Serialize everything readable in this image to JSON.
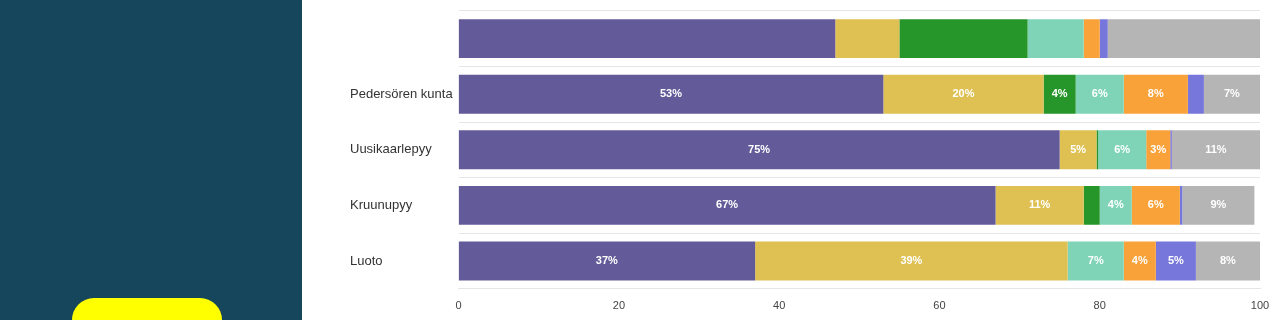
{
  "chart_data": {
    "type": "bar",
    "orientation": "horizontal",
    "stacked": true,
    "categories": [
      null,
      "Pedersören kunta",
      "Uusikaarlepyy",
      "Kruunupyy",
      "Luoto"
    ],
    "series": [
      {
        "color": "#635a9a",
        "values": [
          47,
          53,
          75,
          67,
          37
        ],
        "value_labels": [
          null,
          "53%",
          "75%",
          "67%",
          "37%"
        ]
      },
      {
        "color": "#dfc153",
        "values": [
          8,
          20,
          4.6,
          11,
          39
        ],
        "value_labels": [
          null,
          "20%",
          "5%",
          "11%",
          "39%"
        ]
      },
      {
        "color": "#26962a",
        "values": [
          16,
          4,
          0.2,
          2,
          0
        ],
        "value_labels": [
          null,
          "4%",
          null,
          null,
          null
        ]
      },
      {
        "color": "#7fd4b8",
        "values": [
          7,
          6,
          6,
          4,
          7
        ],
        "value_labels": [
          null,
          "6%",
          "6%",
          "4%",
          "7%"
        ]
      },
      {
        "color": "#f9a23a",
        "values": [
          2,
          8,
          3,
          6,
          4
        ],
        "value_labels": [
          null,
          "8%",
          "3%",
          "6%",
          "4%"
        ]
      },
      {
        "color": "#7676db",
        "values": [
          1,
          2,
          0.2,
          0.3,
          5
        ],
        "value_labels": [
          null,
          null,
          null,
          null,
          "5%"
        ]
      },
      {
        "color": "#b5b5b5",
        "values": [
          19,
          7,
          11,
          9,
          8
        ],
        "value_labels": [
          null,
          "7%",
          "11%",
          "9%",
          "8%"
        ]
      }
    ],
    "xlim": [
      0,
      100
    ],
    "xticks": [
      0,
      20,
      40,
      60,
      80,
      100
    ],
    "grid": "y",
    "legend": false
  }
}
